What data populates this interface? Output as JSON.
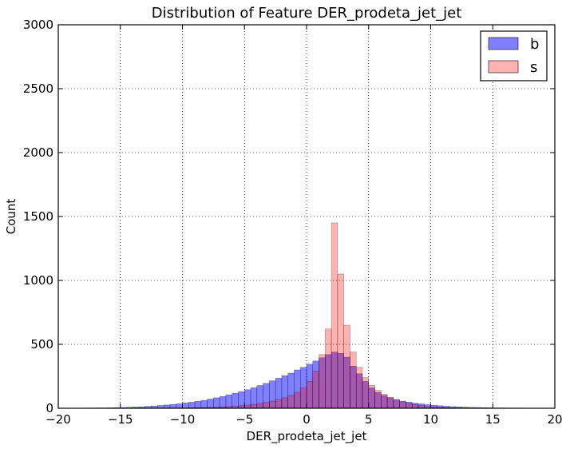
{
  "chart_data": {
    "type": "bar",
    "title": "Distribution of Feature DER_prodeta_jet_jet",
    "xlabel": "DER_prodeta_jet_jet",
    "ylabel": "Count",
    "xlim": [
      -20,
      20
    ],
    "ylim": [
      0,
      3000
    ],
    "x_ticks": [
      -20,
      -15,
      -10,
      -5,
      0,
      5,
      10,
      15,
      20
    ],
    "y_ticks": [
      0,
      500,
      1000,
      1500,
      2000,
      2500,
      3000
    ],
    "grid": true,
    "legend_position": "top-right",
    "bin_start": -18,
    "bin_width": 0.5,
    "series": [
      {
        "name": "b",
        "color": "#0000ff",
        "opacity": 0.5,
        "values": [
          2,
          2,
          3,
          3,
          4,
          5,
          6,
          8,
          10,
          12,
          15,
          18,
          22,
          26,
          30,
          35,
          42,
          48,
          55,
          62,
          72,
          82,
          92,
          105,
          118,
          130,
          145,
          160,
          178,
          195,
          215,
          235,
          255,
          275,
          300,
          320,
          345,
          370,
          395,
          420,
          440,
          430,
          400,
          330,
          270,
          210,
          160,
          125,
          100,
          82,
          68,
          56,
          48,
          40,
          34,
          28,
          24,
          20,
          16,
          13,
          11,
          9,
          7,
          6,
          5,
          4,
          3,
          3,
          2,
          2,
          2,
          1
        ]
      },
      {
        "name": "s",
        "color": "#ff0000",
        "opacity": 0.3,
        "values": [
          0,
          0,
          0,
          0,
          0,
          0,
          0,
          0,
          0,
          0,
          1,
          1,
          1,
          2,
          2,
          3,
          3,
          4,
          5,
          6,
          7,
          9,
          11,
          13,
          16,
          20,
          25,
          30,
          38,
          46,
          56,
          68,
          82,
          100,
          125,
          160,
          210,
          290,
          420,
          620,
          1450,
          1050,
          650,
          440,
          320,
          240,
          180,
          140,
          110,
          85,
          65,
          50,
          38,
          28,
          20,
          14,
          10,
          7,
          5,
          3,
          2,
          1,
          1,
          0,
          0,
          0,
          0,
          0,
          0,
          0,
          0,
          0
        ]
      }
    ]
  }
}
